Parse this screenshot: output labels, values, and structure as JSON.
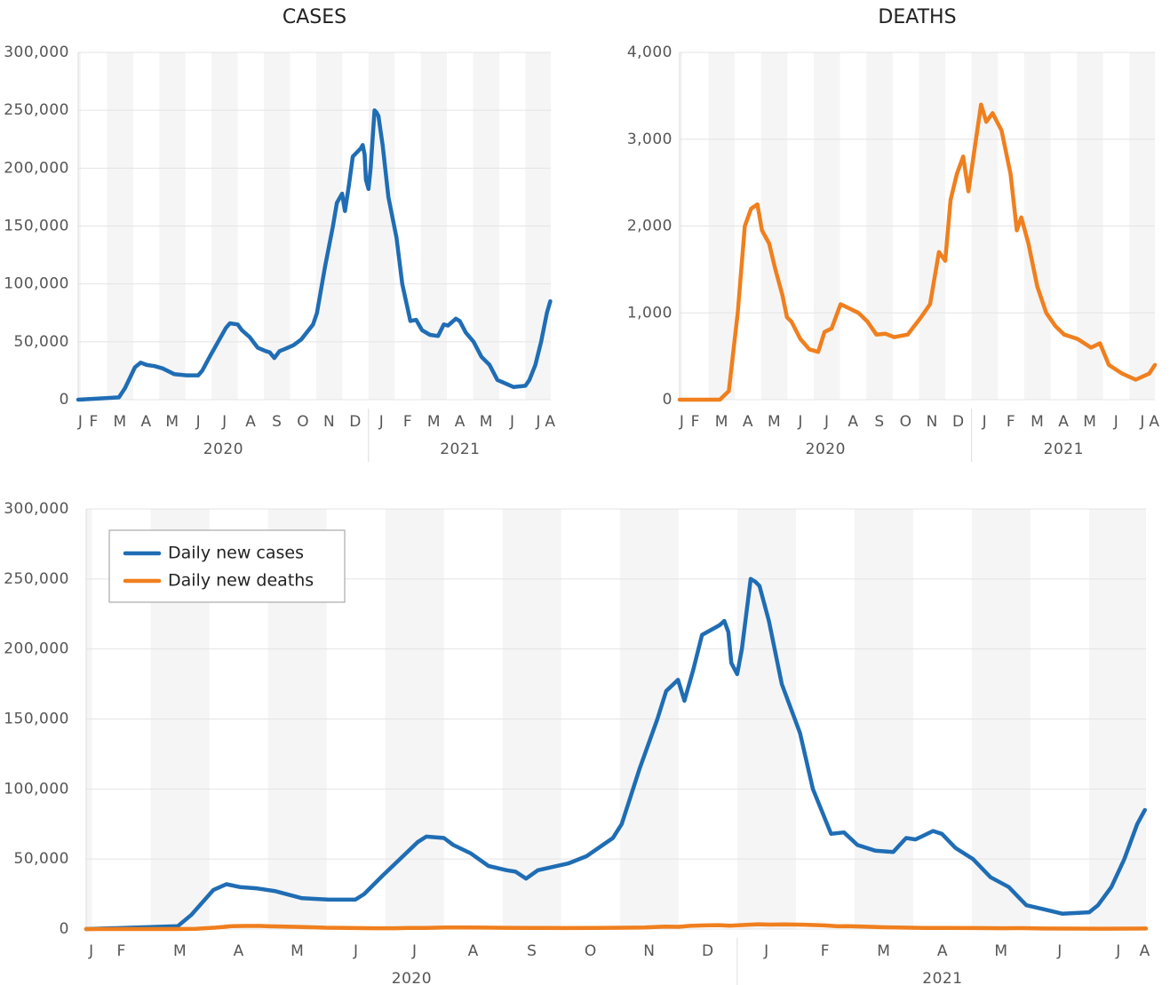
{
  "chart_data": [
    {
      "type": "line",
      "title": "CASES",
      "xlim": [
        0.9,
        18.97
      ],
      "ylim": [
        0,
        300000
      ],
      "yticks": [
        0,
        {
          "value": 50000,
          "label": "50,000"
        },
        {
          "value": 100000,
          "label": "100,000"
        },
        {
          "value": 150000,
          "label": "150,000"
        },
        {
          "value": 200000,
          "label": "200,000"
        },
        {
          "value": 250000,
          "label": "250,000"
        },
        {
          "value": 300000,
          "label": "300,000"
        }
      ],
      "xticks": [
        {
          "value": 0.99,
          "label": "J"
        },
        {
          "value": 1.5,
          "label": "F"
        },
        {
          "value": 2.5,
          "label": "M"
        },
        {
          "value": 3.5,
          "label": "A"
        },
        {
          "value": 4.5,
          "label": "M"
        },
        {
          "value": 5.5,
          "label": "J"
        },
        {
          "value": 6.5,
          "label": "J"
        },
        {
          "value": 7.5,
          "label": "A"
        },
        {
          "value": 8.5,
          "label": "S"
        },
        {
          "value": 9.5,
          "label": "O"
        },
        {
          "value": 10.5,
          "label": "N"
        },
        {
          "value": 11.5,
          "label": "D"
        },
        {
          "value": 12.5,
          "label": "J"
        },
        {
          "value": 13.5,
          "label": "F"
        },
        {
          "value": 14.5,
          "label": "M"
        },
        {
          "value": 15.5,
          "label": "A"
        },
        {
          "value": 16.5,
          "label": "M"
        },
        {
          "value": 17.5,
          "label": "J"
        },
        {
          "value": 18.5,
          "label": "J"
        },
        {
          "value": 18.95,
          "label": "A"
        }
      ],
      "year_labels": [
        {
          "value": 6.45,
          "label": "2020"
        },
        {
          "value": 15.5,
          "label": "2021"
        }
      ],
      "grid": true,
      "shade_alternate_months": true,
      "series": [
        {
          "color": "#1f6db4",
          "x": [
            0.9,
            2.46,
            2.69,
            3.07,
            3.29,
            3.52,
            3.82,
            4.13,
            4.58,
            5.04,
            5.49,
            5.64,
            5.95,
            6.25,
            6.55,
            6.7,
            7.0,
            7.16,
            7.46,
            7.76,
            8.07,
            8.22,
            8.4,
            8.6,
            8.82,
            9.13,
            9.43,
            9.88,
            10.03,
            10.34,
            10.64,
            10.79,
            10.99,
            11.1,
            11.25,
            11.4,
            11.7,
            11.78,
            11.85,
            11.9,
            12.0,
            12.08,
            12.23,
            12.31,
            12.38,
            12.54,
            12.76,
            13.07,
            13.29,
            13.6,
            13.82,
            14.05,
            14.35,
            14.66,
            14.88,
            15.04,
            15.34,
            15.49,
            15.72,
            16.02,
            16.32,
            16.63,
            16.93,
            17.24,
            17.54,
            18.0,
            18.15,
            18.38,
            18.6,
            18.82,
            18.95
          ],
          "values": [
            0,
            2000,
            10000,
            28000,
            32000,
            30000,
            29000,
            27000,
            22000,
            21000,
            21000,
            25000,
            38000,
            50000,
            62000,
            66000,
            65000,
            60000,
            54000,
            45000,
            42000,
            41000,
            36000,
            42000,
            44000,
            47000,
            52000,
            65000,
            75000,
            115000,
            150000,
            170000,
            178000,
            163000,
            185000,
            210000,
            217000,
            220000,
            212000,
            190000,
            182000,
            200000,
            250000,
            248000,
            245000,
            220000,
            175000,
            140000,
            100000,
            68000,
            69000,
            60000,
            56000,
            55000,
            65000,
            64000,
            70000,
            68000,
            58000,
            50000,
            37000,
            30000,
            17000,
            14000,
            11000,
            12000,
            17000,
            30000,
            50000,
            75000,
            85000
          ]
        }
      ]
    },
    {
      "type": "line",
      "title": "DEATHS",
      "xlim": [
        0.9,
        18.97
      ],
      "ylim": [
        0,
        4000
      ],
      "yticks": [
        0,
        {
          "value": 1000,
          "label": "1,000"
        },
        {
          "value": 2000,
          "label": "2,000"
        },
        {
          "value": 3000,
          "label": "3,000"
        },
        {
          "value": 4000,
          "label": "4,000"
        }
      ],
      "xticks": [
        {
          "value": 0.99,
          "label": "J"
        },
        {
          "value": 1.5,
          "label": "F"
        },
        {
          "value": 2.5,
          "label": "M"
        },
        {
          "value": 3.5,
          "label": "A"
        },
        {
          "value": 4.5,
          "label": "M"
        },
        {
          "value": 5.5,
          "label": "J"
        },
        {
          "value": 6.5,
          "label": "J"
        },
        {
          "value": 7.5,
          "label": "A"
        },
        {
          "value": 8.5,
          "label": "S"
        },
        {
          "value": 9.5,
          "label": "O"
        },
        {
          "value": 10.5,
          "label": "N"
        },
        {
          "value": 11.5,
          "label": "D"
        },
        {
          "value": 12.5,
          "label": "J"
        },
        {
          "value": 13.5,
          "label": "F"
        },
        {
          "value": 14.5,
          "label": "M"
        },
        {
          "value": 15.5,
          "label": "A"
        },
        {
          "value": 16.5,
          "label": "M"
        },
        {
          "value": 17.5,
          "label": "J"
        },
        {
          "value": 18.5,
          "label": "J"
        },
        {
          "value": 18.95,
          "label": "A"
        }
      ],
      "year_labels": [
        {
          "value": 6.45,
          "label": "2020"
        },
        {
          "value": 15.5,
          "label": "2021"
        }
      ],
      "grid": true,
      "shade_alternate_months": true,
      "series": [
        {
          "color": "#f07f1e",
          "x": [
            0.9,
            2.43,
            2.77,
            3.11,
            3.38,
            3.62,
            3.86,
            4.03,
            4.3,
            4.54,
            4.81,
            4.98,
            5.15,
            5.49,
            5.83,
            6.17,
            6.41,
            6.68,
            7.02,
            7.36,
            7.7,
            8.04,
            8.38,
            8.72,
            9.06,
            9.57,
            10.08,
            10.42,
            10.76,
            11.0,
            11.2,
            11.44,
            11.68,
            11.88,
            12.12,
            12.36,
            12.56,
            12.8,
            13.14,
            13.48,
            13.72,
            13.89,
            14.16,
            14.5,
            14.84,
            15.18,
            15.52,
            16.03,
            16.54,
            16.88,
            17.22,
            17.73,
            18.24,
            18.75,
            18.97
          ],
          "values": [
            0,
            0,
            100,
            1000,
            2000,
            2200,
            2250,
            1950,
            1800,
            1500,
            1200,
            950,
            900,
            700,
            580,
            550,
            780,
            820,
            1100,
            1050,
            1000,
            900,
            750,
            760,
            720,
            750,
            950,
            1100,
            1700,
            1600,
            2300,
            2600,
            2800,
            2400,
            2900,
            3400,
            3200,
            3300,
            3100,
            2600,
            1950,
            2100,
            1800,
            1300,
            1000,
            850,
            750,
            700,
            600,
            650,
            400,
            300,
            230,
            300,
            400
          ]
        }
      ]
    },
    {
      "type": "line",
      "xlim": [
        0.9,
        18.97
      ],
      "ylim": [
        0,
        300000
      ],
      "yticks": [
        0,
        {
          "value": 50000,
          "label": "50,000"
        },
        {
          "value": 100000,
          "label": "100,000"
        },
        {
          "value": 150000,
          "label": "150,000"
        },
        {
          "value": 200000,
          "label": "200,000"
        },
        {
          "value": 250000,
          "label": "250,000"
        },
        {
          "value": 300000,
          "label": "300,000"
        }
      ],
      "xticks": [
        {
          "value": 0.99,
          "label": "J"
        },
        {
          "value": 1.5,
          "label": "F"
        },
        {
          "value": 2.5,
          "label": "M"
        },
        {
          "value": 3.5,
          "label": "A"
        },
        {
          "value": 4.5,
          "label": "M"
        },
        {
          "value": 5.5,
          "label": "J"
        },
        {
          "value": 6.5,
          "label": "J"
        },
        {
          "value": 7.5,
          "label": "A"
        },
        {
          "value": 8.5,
          "label": "S"
        },
        {
          "value": 9.5,
          "label": "O"
        },
        {
          "value": 10.5,
          "label": "N"
        },
        {
          "value": 11.5,
          "label": "D"
        },
        {
          "value": 12.5,
          "label": "J"
        },
        {
          "value": 13.5,
          "label": "F"
        },
        {
          "value": 14.5,
          "label": "M"
        },
        {
          "value": 15.5,
          "label": "A"
        },
        {
          "value": 16.5,
          "label": "M"
        },
        {
          "value": 17.5,
          "label": "J"
        },
        {
          "value": 18.5,
          "label": "J"
        },
        {
          "value": 18.95,
          "label": "A"
        }
      ],
      "year_labels": [
        {
          "value": 6.45,
          "label": "2020"
        },
        {
          "value": 15.5,
          "label": "2021"
        }
      ],
      "grid": true,
      "shade_alternate_months": true,
      "legend": "upper left",
      "series": [
        {
          "name": "Daily new cases",
          "color": "#1f6db4",
          "x": [
            0.9,
            2.46,
            2.69,
            3.07,
            3.29,
            3.52,
            3.82,
            4.13,
            4.58,
            5.04,
            5.49,
            5.64,
            5.95,
            6.25,
            6.55,
            6.7,
            7.0,
            7.16,
            7.46,
            7.76,
            8.07,
            8.22,
            8.4,
            8.6,
            8.82,
            9.13,
            9.43,
            9.88,
            10.03,
            10.34,
            10.64,
            10.79,
            10.99,
            11.1,
            11.25,
            11.4,
            11.7,
            11.78,
            11.85,
            11.9,
            12.0,
            12.08,
            12.23,
            12.31,
            12.38,
            12.54,
            12.76,
            13.07,
            13.29,
            13.6,
            13.82,
            14.05,
            14.35,
            14.66,
            14.88,
            15.04,
            15.34,
            15.49,
            15.72,
            16.02,
            16.32,
            16.63,
            16.93,
            17.24,
            17.54,
            18.0,
            18.15,
            18.38,
            18.6,
            18.82,
            18.95
          ],
          "values": [
            0,
            2000,
            10000,
            28000,
            32000,
            30000,
            29000,
            27000,
            22000,
            21000,
            21000,
            25000,
            38000,
            50000,
            62000,
            66000,
            65000,
            60000,
            54000,
            45000,
            42000,
            41000,
            36000,
            42000,
            44000,
            47000,
            52000,
            65000,
            75000,
            115000,
            150000,
            170000,
            178000,
            163000,
            185000,
            210000,
            217000,
            220000,
            212000,
            190000,
            182000,
            200000,
            250000,
            248000,
            245000,
            220000,
            175000,
            140000,
            100000,
            68000,
            69000,
            60000,
            56000,
            55000,
            65000,
            64000,
            70000,
            68000,
            58000,
            50000,
            37000,
            30000,
            17000,
            14000,
            11000,
            12000,
            17000,
            30000,
            50000,
            75000,
            85000
          ]
        },
        {
          "name": "Daily new deaths",
          "color": "#f07f1e",
          "x": [
            0.9,
            2.43,
            2.77,
            3.11,
            3.38,
            3.62,
            3.86,
            4.03,
            4.3,
            4.54,
            4.81,
            4.98,
            5.15,
            5.49,
            5.83,
            6.17,
            6.41,
            6.68,
            7.02,
            7.36,
            7.7,
            8.04,
            8.38,
            8.72,
            9.06,
            9.57,
            10.08,
            10.42,
            10.76,
            11.0,
            11.2,
            11.44,
            11.68,
            11.88,
            12.12,
            12.36,
            12.56,
            12.8,
            13.14,
            13.48,
            13.72,
            13.89,
            14.16,
            14.5,
            14.84,
            15.18,
            15.52,
            16.03,
            16.54,
            16.88,
            17.22,
            17.73,
            18.24,
            18.75,
            18.97
          ],
          "values": [
            0,
            0,
            100,
            1000,
            2000,
            2200,
            2250,
            1950,
            1800,
            1500,
            1200,
            950,
            900,
            700,
            580,
            550,
            780,
            820,
            1100,
            1050,
            1000,
            900,
            750,
            760,
            720,
            750,
            950,
            1100,
            1700,
            1600,
            2300,
            2600,
            2800,
            2400,
            2900,
            3400,
            3200,
            3300,
            3100,
            2600,
            1950,
            2100,
            1800,
            1300,
            1000,
            850,
            750,
            700,
            600,
            650,
            400,
            300,
            230,
            300,
            400
          ]
        }
      ]
    }
  ]
}
